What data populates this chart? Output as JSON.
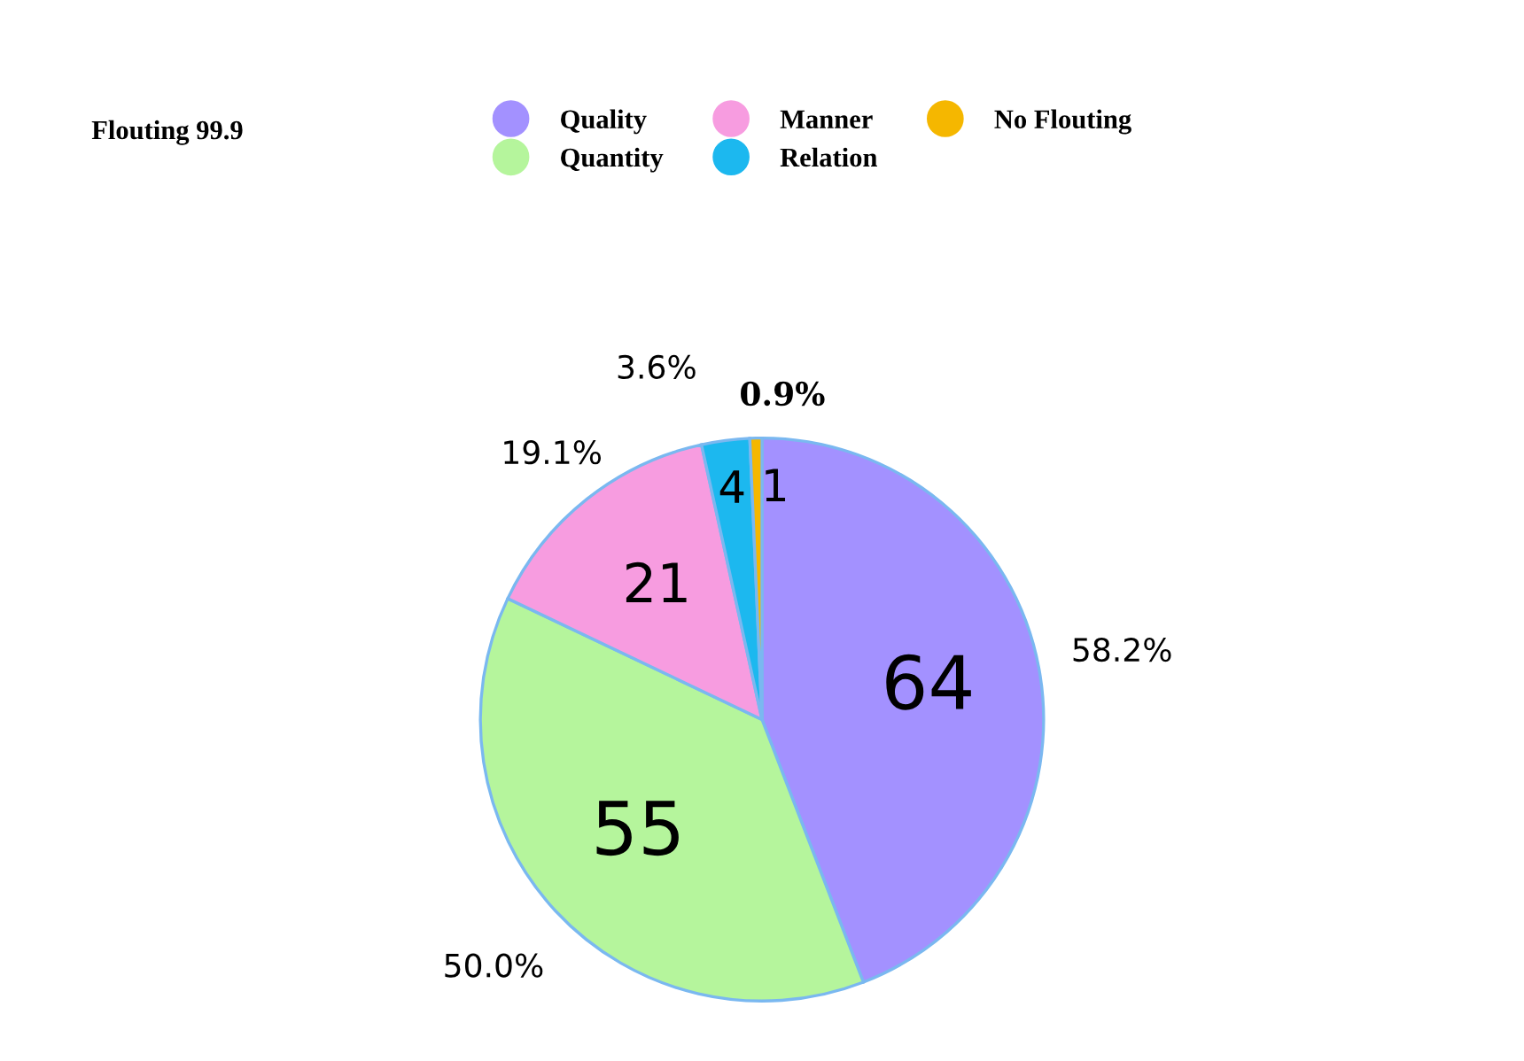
{
  "chart_data": {
    "type": "pie",
    "title": "Flouting 99.9",
    "categories": [
      "Quality",
      "Quantity",
      "Manner",
      "Relation",
      "No Flouting"
    ],
    "values": [
      64,
      55,
      21,
      4,
      1
    ],
    "colors": [
      "#a391ff",
      "#b5f59c",
      "#f79ce0",
      "#1cb8ef",
      "#f5b700"
    ],
    "data_labels": true,
    "annotations": [
      {
        "text": "58.2%",
        "x": "Quality"
      },
      {
        "text": "50.0%",
        "x": "Quantity"
      },
      {
        "text": "19.1%",
        "x": "Manner"
      },
      {
        "text": "3.6%",
        "x": "Relation"
      },
      {
        "text": "0.9%",
        "x": "No Flouting"
      }
    ],
    "legend": "top"
  }
}
